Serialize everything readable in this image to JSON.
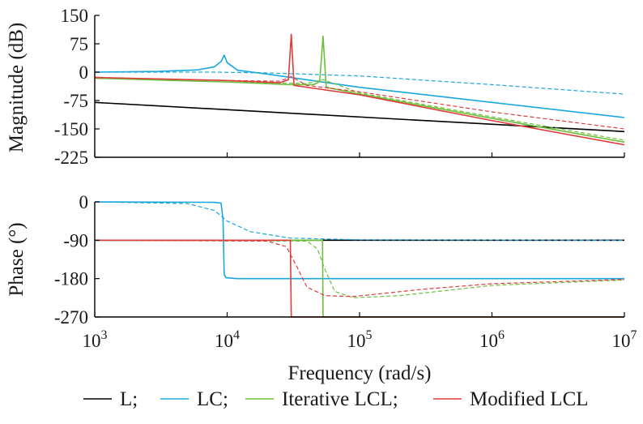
{
  "colors": {
    "L": "#000000",
    "LC": "#1aa7de",
    "Iterative LCL": "#6cbf3c",
    "Modified LCL": "#e03c3c"
  },
  "chart_data": [
    {
      "type": "line",
      "panel": "magnitude",
      "ylabel": "Magnitude (dB)",
      "xscale": "log",
      "xlim": [
        1000,
        10000000
      ],
      "ylim": [
        -225,
        150
      ],
      "yticks": [
        150,
        75,
        0,
        -75,
        -150,
        -225
      ],
      "series": [
        {
          "name": "L",
          "style": "solid",
          "color": "#000000",
          "points": [
            [
              1000,
              -80
            ],
            [
              10000000,
              -157
            ]
          ]
        },
        {
          "name": "LC",
          "style": "solid",
          "color": "#1aa7de",
          "points": [
            [
              1000,
              0
            ],
            [
              3000,
              2
            ],
            [
              6000,
              6
            ],
            [
              8000,
              14
            ],
            [
              9000,
              28
            ],
            [
              9500,
              45
            ],
            [
              10000,
              25
            ],
            [
              12000,
              5
            ],
            [
              20000,
              -5
            ],
            [
              50000,
              -25
            ],
            [
              100000,
              -40
            ],
            [
              1000000,
              -80
            ],
            [
              10000000,
              -120
            ]
          ]
        },
        {
          "name": "LC",
          "style": "dashed",
          "color": "#1aa7de",
          "points": [
            [
              1000,
              0
            ],
            [
              8000,
              0
            ],
            [
              20000,
              -2
            ],
            [
              100000,
              -10
            ],
            [
              1000000,
              -33
            ],
            [
              10000000,
              -58
            ]
          ]
        },
        {
          "name": "Iterative LCL",
          "style": "solid",
          "color": "#6cbf3c",
          "points": [
            [
              1000,
              -16
            ],
            [
              10000,
              -26
            ],
            [
              30000,
              -33
            ],
            [
              45000,
              -33
            ],
            [
              50000,
              -25
            ],
            [
              53000,
              95
            ],
            [
              56000,
              -40
            ],
            [
              100000,
              -58
            ],
            [
              1000000,
              -122
            ],
            [
              10000000,
              -185
            ]
          ]
        },
        {
          "name": "Iterative LCL",
          "style": "dashed",
          "color": "#6cbf3c",
          "points": [
            [
              1000,
              -16
            ],
            [
              10000,
              -26
            ],
            [
              40000,
              -30
            ],
            [
              53000,
              -20
            ],
            [
              70000,
              -35
            ],
            [
              100000,
              -55
            ],
            [
              1000000,
              -118
            ],
            [
              10000000,
              -180
            ]
          ]
        },
        {
          "name": "Modified LCL",
          "style": "solid",
          "color": "#e03c3c",
          "points": [
            [
              1000,
              -14
            ],
            [
              10000,
              -22
            ],
            [
              25000,
              -28
            ],
            [
              29000,
              -20
            ],
            [
              30500,
              100
            ],
            [
              32000,
              -35
            ],
            [
              100000,
              -60
            ],
            [
              1000000,
              -128
            ],
            [
              10000000,
              -192
            ]
          ]
        },
        {
          "name": "Modified LCL",
          "style": "dashed",
          "color": "#e03c3c",
          "points": [
            [
              1000,
              -14
            ],
            [
              10000,
              -22
            ],
            [
              25000,
              -24
            ],
            [
              30500,
              -12
            ],
            [
              40000,
              -35
            ],
            [
              100000,
              -52
            ],
            [
              1000000,
              -105
            ],
            [
              10000000,
              -150
            ]
          ]
        }
      ]
    },
    {
      "type": "line",
      "panel": "phase",
      "ylabel": "Phase (°)",
      "xlabel": "Frequency (rad/s)",
      "xscale": "log",
      "xlim": [
        1000,
        10000000
      ],
      "ylim": [
        -270,
        0
      ],
      "yticks": [
        0,
        -90,
        -180,
        -270
      ],
      "xticks": [
        1000,
        10000,
        100000,
        1000000,
        10000000
      ],
      "xtick_labels": [
        [
          "10",
          "3"
        ],
        [
          "10",
          "4"
        ],
        [
          "10",
          "5"
        ],
        [
          "10",
          "6"
        ],
        [
          "10",
          "7"
        ]
      ],
      "series": [
        {
          "name": "L",
          "style": "solid",
          "color": "#000000",
          "points": [
            [
              1000,
              -90
            ],
            [
              10000000,
              -90
            ]
          ]
        },
        {
          "name": "LC",
          "style": "solid",
          "color": "#1aa7de",
          "points": [
            [
              1000,
              0
            ],
            [
              8000,
              -1
            ],
            [
              9000,
              -3
            ],
            [
              9300,
              -40
            ],
            [
              9500,
              -170
            ],
            [
              9800,
              -178
            ],
            [
              12000,
              -180
            ],
            [
              10000000,
              -180
            ]
          ]
        },
        {
          "name": "LC",
          "style": "dashed",
          "color": "#1aa7de",
          "points": [
            [
              1000,
              0
            ],
            [
              5000,
              -4
            ],
            [
              8000,
              -20
            ],
            [
              10000,
              -45
            ],
            [
              15000,
              -70
            ],
            [
              30000,
              -85
            ],
            [
              100000,
              -89
            ],
            [
              10000000,
              -90
            ]
          ]
        },
        {
          "name": "Iterative LCL",
          "style": "solid",
          "color": "#6cbf3c",
          "points": [
            [
              1000,
              -90
            ],
            [
              52500,
              -90
            ],
            [
              53000,
              -270
            ],
            [
              10000000,
              -270
            ]
          ]
        },
        {
          "name": "Iterative LCL",
          "style": "dashed",
          "color": "#6cbf3c",
          "points": [
            [
              1000,
              -90
            ],
            [
              40000,
              -92
            ],
            [
              48000,
              -110
            ],
            [
              55000,
              -160
            ],
            [
              65000,
              -210
            ],
            [
              90000,
              -225
            ],
            [
              200000,
              -220
            ],
            [
              1000000,
              -196
            ],
            [
              10000000,
              -183
            ]
          ]
        },
        {
          "name": "Modified LCL",
          "style": "solid",
          "color": "#e03c3c",
          "points": [
            [
              1000,
              -90
            ],
            [
              30000,
              -90
            ],
            [
              30500,
              -270
            ],
            [
              10000000,
              -270
            ]
          ]
        },
        {
          "name": "Modified LCL",
          "style": "dashed",
          "color": "#e03c3c",
          "points": [
            [
              1000,
              -90
            ],
            [
              20000,
              -92
            ],
            [
              28000,
              -105
            ],
            [
              34000,
              -155
            ],
            [
              40000,
              -200
            ],
            [
              55000,
              -220
            ],
            [
              90000,
              -222
            ],
            [
              300000,
              -205
            ],
            [
              1000000,
              -192
            ],
            [
              10000000,
              -182
            ]
          ]
        }
      ]
    }
  ],
  "legend": [
    {
      "label": "L;",
      "color": "#000000"
    },
    {
      "label": "LC;",
      "color": "#1aa7de"
    },
    {
      "label": "Iterative LCL;",
      "color": "#6cbf3c"
    },
    {
      "label": "Modified LCL",
      "color": "#e03c3c"
    }
  ]
}
